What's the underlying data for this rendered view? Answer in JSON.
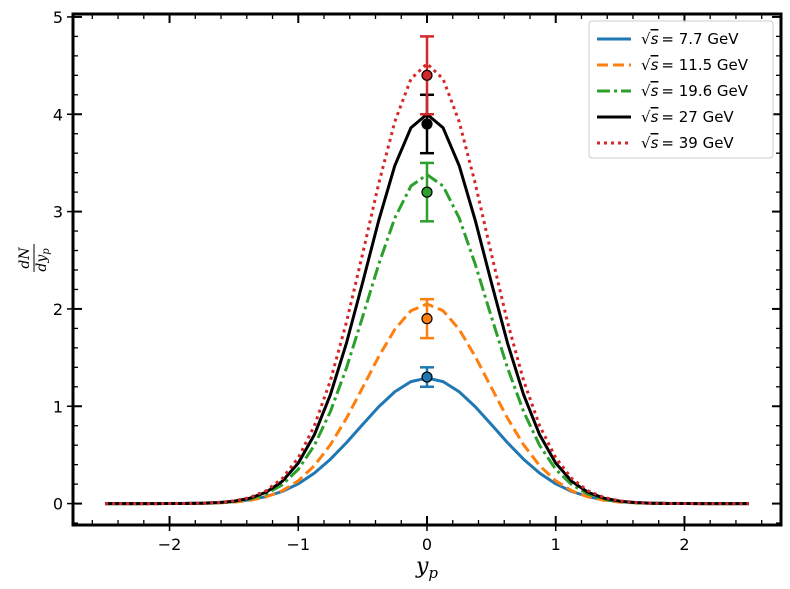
{
  "chart_data": {
    "type": "line",
    "title": "",
    "xlabel_main": "y",
    "xlabel_sub": "p",
    "ylabel_num": "dN",
    "ylabel_den_main": "dy",
    "ylabel_den_sub": "p",
    "xlim": [
      -2.75,
      2.75
    ],
    "ylim": [
      -0.22,
      5.03
    ],
    "x_ticks": [
      -2,
      -1,
      0,
      1,
      2
    ],
    "x_tick_labels": [
      "−2",
      "−1",
      "0",
      "1",
      "2"
    ],
    "y_ticks": [
      0,
      1,
      2,
      3,
      4,
      5
    ],
    "y_tick_labels": [
      "0",
      "1",
      "2",
      "3",
      "4",
      "5"
    ],
    "grid": false,
    "legend_position": "top-right",
    "series": [
      {
        "name": "√s = 7.7 GeV",
        "legend_prefix": "√",
        "legend_var": "s",
        "legend_value": "= 7.7 GeV",
        "color": "#1f77b4",
        "style": "solid",
        "peak": 1.29,
        "sigma": 0.52,
        "point": {
          "x": 0,
          "y": 1.3,
          "err": 0.1
        }
      },
      {
        "name": "√s = 11.5 GeV",
        "legend_prefix": "√",
        "legend_var": "s",
        "legend_value": "= 11.5 GeV",
        "color": "#ff7f0e",
        "style": "dashed",
        "peak": 2.05,
        "sigma": 0.48,
        "point": {
          "x": 0,
          "y": 1.9,
          "err": 0.2
        }
      },
      {
        "name": "√s = 19.6 GeV",
        "legend_prefix": "√",
        "legend_var": "s",
        "legend_value": "= 19.6 GeV",
        "color": "#2ca02c",
        "style": "dashdot",
        "peak": 3.38,
        "sigma": 0.47,
        "point": {
          "x": 0,
          "y": 3.2,
          "err": 0.3
        }
      },
      {
        "name": "√s = 27 GeV",
        "legend_prefix": "√",
        "legend_var": "s",
        "legend_value": "= 27 GeV",
        "color": "#000000",
        "style": "solid",
        "peak": 4.0,
        "sigma": 0.47,
        "point": {
          "x": 0,
          "y": 3.9,
          "err": 0.3
        }
      },
      {
        "name": "√s = 39 GeV",
        "legend_prefix": "√",
        "legend_var": "s",
        "legend_value": "= 39 GeV",
        "color": "#d62728",
        "style": "dotted",
        "peak": 4.52,
        "sigma": 0.47,
        "point": {
          "x": 0,
          "y": 4.4,
          "err": 0.4
        }
      }
    ]
  }
}
